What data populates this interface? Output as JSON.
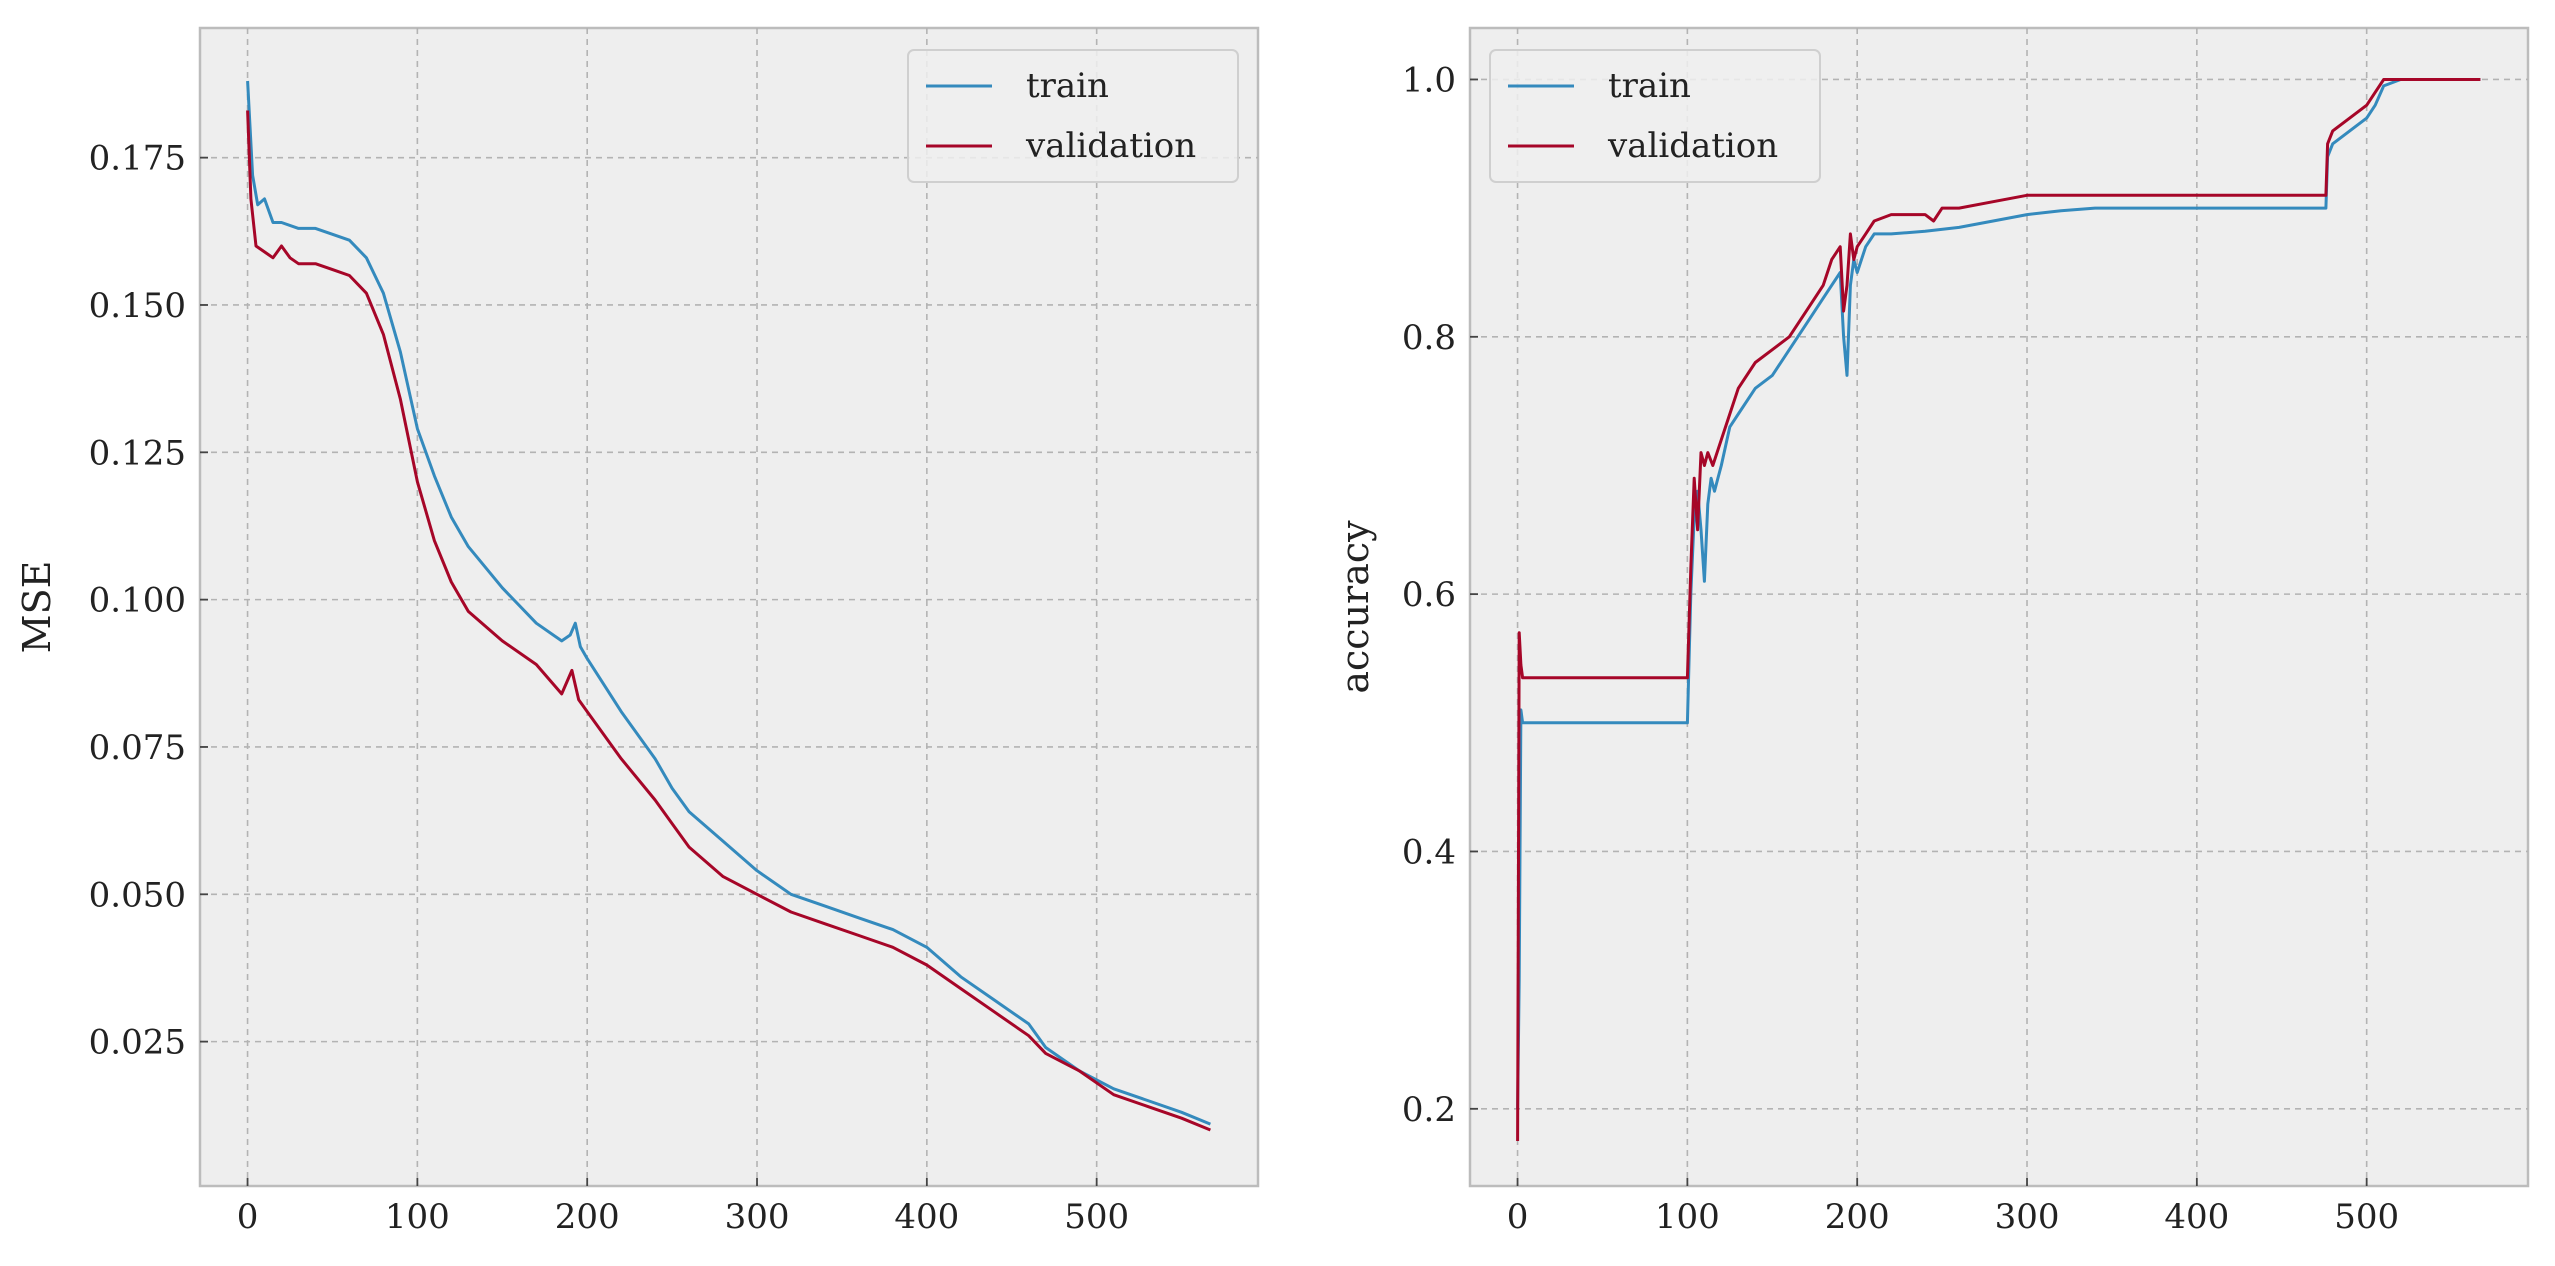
{
  "chart_data": [
    {
      "type": "line",
      "title": "",
      "xlabel": "",
      "ylabel": "MSE",
      "xlim": [
        -28,
        595
      ],
      "ylim": [
        0.0005,
        0.197
      ],
      "xticks": [
        0,
        100,
        200,
        300,
        400,
        500
      ],
      "yticks": [
        0.025,
        0.05,
        0.075,
        0.1,
        0.125,
        0.15,
        0.175
      ],
      "ytick_labels": [
        "0.025",
        "0.050",
        "0.075",
        "0.100",
        "0.125",
        "0.150",
        "0.175"
      ],
      "xtick_labels": [
        "0",
        "100",
        "200",
        "300",
        "400",
        "500"
      ],
      "grid": true,
      "legend_position": "top-right",
      "series": [
        {
          "name": "train",
          "color": "#348ABD",
          "x": [
            0,
            3,
            6,
            10,
            15,
            20,
            30,
            40,
            50,
            60,
            70,
            80,
            90,
            100,
            110,
            120,
            130,
            150,
            170,
            185,
            190,
            193,
            196,
            200,
            220,
            240,
            250,
            260,
            280,
            300,
            320,
            340,
            360,
            380,
            400,
            420,
            440,
            460,
            470,
            490,
            510,
            530,
            550,
            567
          ],
          "y": [
            0.188,
            0.172,
            0.167,
            0.168,
            0.164,
            0.164,
            0.163,
            0.163,
            0.162,
            0.161,
            0.158,
            0.152,
            0.142,
            0.129,
            0.121,
            0.114,
            0.109,
            0.102,
            0.096,
            0.093,
            0.094,
            0.096,
            0.092,
            0.09,
            0.081,
            0.073,
            0.068,
            0.064,
            0.059,
            0.054,
            0.05,
            0.048,
            0.046,
            0.044,
            0.041,
            0.036,
            0.032,
            0.028,
            0.024,
            0.02,
            0.017,
            0.015,
            0.013,
            0.011
          ]
        },
        {
          "name": "validation",
          "color": "#A60628",
          "x": [
            0,
            2,
            5,
            10,
            15,
            20,
            25,
            30,
            40,
            50,
            60,
            70,
            80,
            90,
            100,
            110,
            120,
            130,
            150,
            170,
            185,
            188,
            191,
            195,
            200,
            220,
            240,
            250,
            260,
            280,
            300,
            320,
            340,
            360,
            380,
            400,
            420,
            440,
            460,
            470,
            490,
            510,
            530,
            550,
            567
          ],
          "y": [
            0.183,
            0.168,
            0.16,
            0.159,
            0.158,
            0.16,
            0.158,
            0.157,
            0.157,
            0.156,
            0.155,
            0.152,
            0.145,
            0.134,
            0.12,
            0.11,
            0.103,
            0.098,
            0.093,
            0.089,
            0.084,
            0.086,
            0.088,
            0.083,
            0.081,
            0.073,
            0.066,
            0.062,
            0.058,
            0.053,
            0.05,
            0.047,
            0.045,
            0.043,
            0.041,
            0.038,
            0.034,
            0.03,
            0.026,
            0.023,
            0.02,
            0.016,
            0.014,
            0.012,
            0.01
          ]
        }
      ]
    },
    {
      "type": "line",
      "title": "",
      "xlabel": "",
      "ylabel": "accuracy",
      "xlim": [
        -28,
        595
      ],
      "ylim": [
        0.14,
        1.04
      ],
      "xticks": [
        0,
        100,
        200,
        300,
        400,
        500
      ],
      "yticks": [
        0.2,
        0.4,
        0.6,
        0.8,
        1.0
      ],
      "ytick_labels": [
        "0.2",
        "0.4",
        "0.6",
        "0.8",
        "1.0"
      ],
      "xtick_labels": [
        "0",
        "100",
        "200",
        "300",
        "400",
        "500"
      ],
      "grid": true,
      "legend_position": "top-left",
      "series": [
        {
          "name": "train",
          "color": "#348ABD",
          "x": [
            0,
            1,
            2,
            3,
            5,
            10,
            50,
            100,
            102,
            104,
            106,
            108,
            110,
            112,
            114,
            116,
            118,
            120,
            125,
            130,
            140,
            150,
            160,
            170,
            180,
            185,
            190,
            192,
            194,
            196,
            198,
            200,
            205,
            210,
            220,
            240,
            260,
            280,
            300,
            320,
            340,
            360,
            400,
            440,
            476,
            477,
            480,
            490,
            500,
            505,
            510,
            520,
            540,
            567
          ],
          "y": [
            0.2,
            0.3,
            0.51,
            0.5,
            0.5,
            0.5,
            0.5,
            0.5,
            0.6,
            0.66,
            0.68,
            0.65,
            0.61,
            0.67,
            0.69,
            0.68,
            0.69,
            0.7,
            0.73,
            0.74,
            0.76,
            0.77,
            0.79,
            0.81,
            0.83,
            0.84,
            0.85,
            0.8,
            0.77,
            0.84,
            0.86,
            0.85,
            0.87,
            0.88,
            0.88,
            0.882,
            0.885,
            0.89,
            0.895,
            0.898,
            0.9,
            0.9,
            0.9,
            0.9,
            0.9,
            0.94,
            0.95,
            0.96,
            0.97,
            0.98,
            0.995,
            1.0,
            1.0,
            1.0
          ]
        },
        {
          "name": "validation",
          "color": "#A60628",
          "x": [
            0,
            1,
            2,
            3,
            5,
            10,
            50,
            100,
            102,
            104,
            106,
            108,
            110,
            112,
            115,
            120,
            125,
            130,
            140,
            150,
            160,
            170,
            180,
            185,
            190,
            192,
            194,
            196,
            198,
            200,
            205,
            210,
            220,
            240,
            245,
            250,
            260,
            280,
            300,
            320,
            360,
            400,
            440,
            476,
            477,
            480,
            490,
            500,
            505,
            510,
            520,
            540,
            567
          ],
          "y": [
            0.175,
            0.57,
            0.545,
            0.535,
            0.535,
            0.535,
            0.535,
            0.535,
            0.62,
            0.69,
            0.65,
            0.71,
            0.7,
            0.71,
            0.7,
            0.72,
            0.74,
            0.76,
            0.78,
            0.79,
            0.8,
            0.82,
            0.84,
            0.86,
            0.87,
            0.82,
            0.84,
            0.88,
            0.86,
            0.87,
            0.88,
            0.89,
            0.895,
            0.895,
            0.89,
            0.9,
            0.9,
            0.905,
            0.91,
            0.91,
            0.91,
            0.91,
            0.91,
            0.91,
            0.95,
            0.96,
            0.97,
            0.98,
            0.99,
            1.0,
            1.0,
            1.0,
            1.0
          ]
        }
      ]
    }
  ]
}
